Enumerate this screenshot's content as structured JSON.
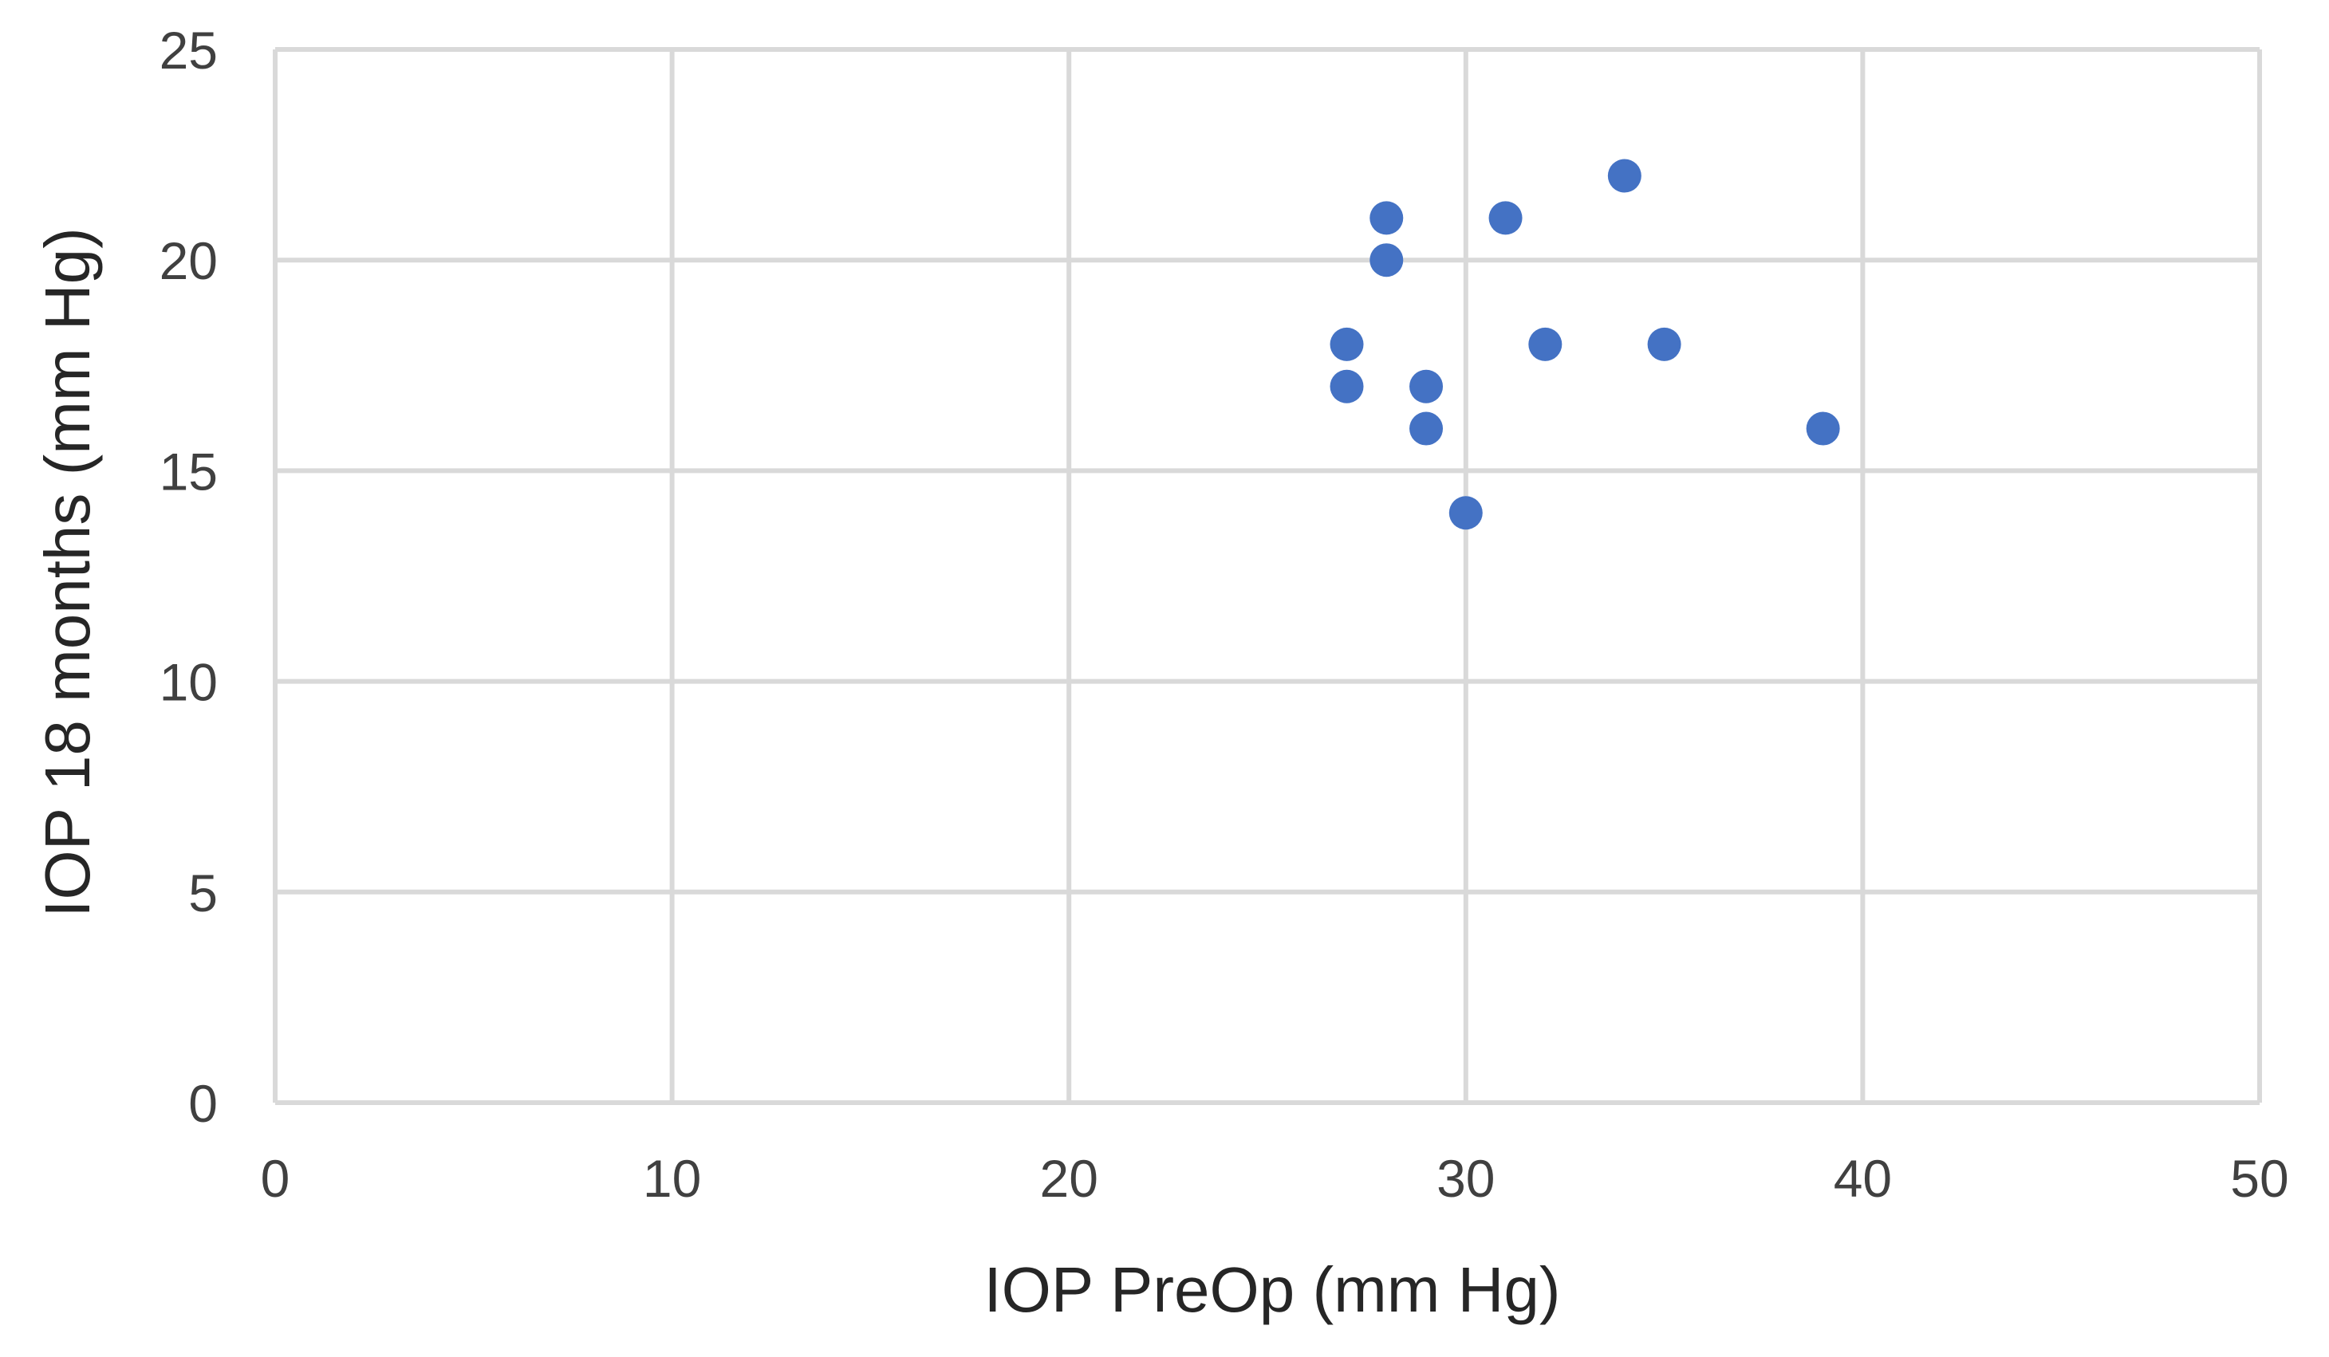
{
  "chart_data": {
    "type": "scatter",
    "title": "",
    "xlabel": "IOP PreOp (mm Hg)",
    "ylabel": "IOP 18 months (mm Hg)",
    "xlim": [
      0,
      50
    ],
    "ylim": [
      0,
      25
    ],
    "xticks": [
      0,
      10,
      20,
      30,
      40,
      50
    ],
    "yticks": [
      0,
      5,
      10,
      15,
      20,
      25
    ],
    "grid": true,
    "legend": "none",
    "series": [
      {
        "name": "",
        "color": "#4472c4",
        "points": [
          {
            "x": 27,
            "y": 18
          },
          {
            "x": 27,
            "y": 17
          },
          {
            "x": 28,
            "y": 21
          },
          {
            "x": 28,
            "y": 20
          },
          {
            "x": 29,
            "y": 17
          },
          {
            "x": 29,
            "y": 16
          },
          {
            "x": 30,
            "y": 14
          },
          {
            "x": 31,
            "y": 21
          },
          {
            "x": 32,
            "y": 18
          },
          {
            "x": 34,
            "y": 22
          },
          {
            "x": 35,
            "y": 18
          },
          {
            "x": 39,
            "y": 16
          }
        ]
      }
    ]
  }
}
